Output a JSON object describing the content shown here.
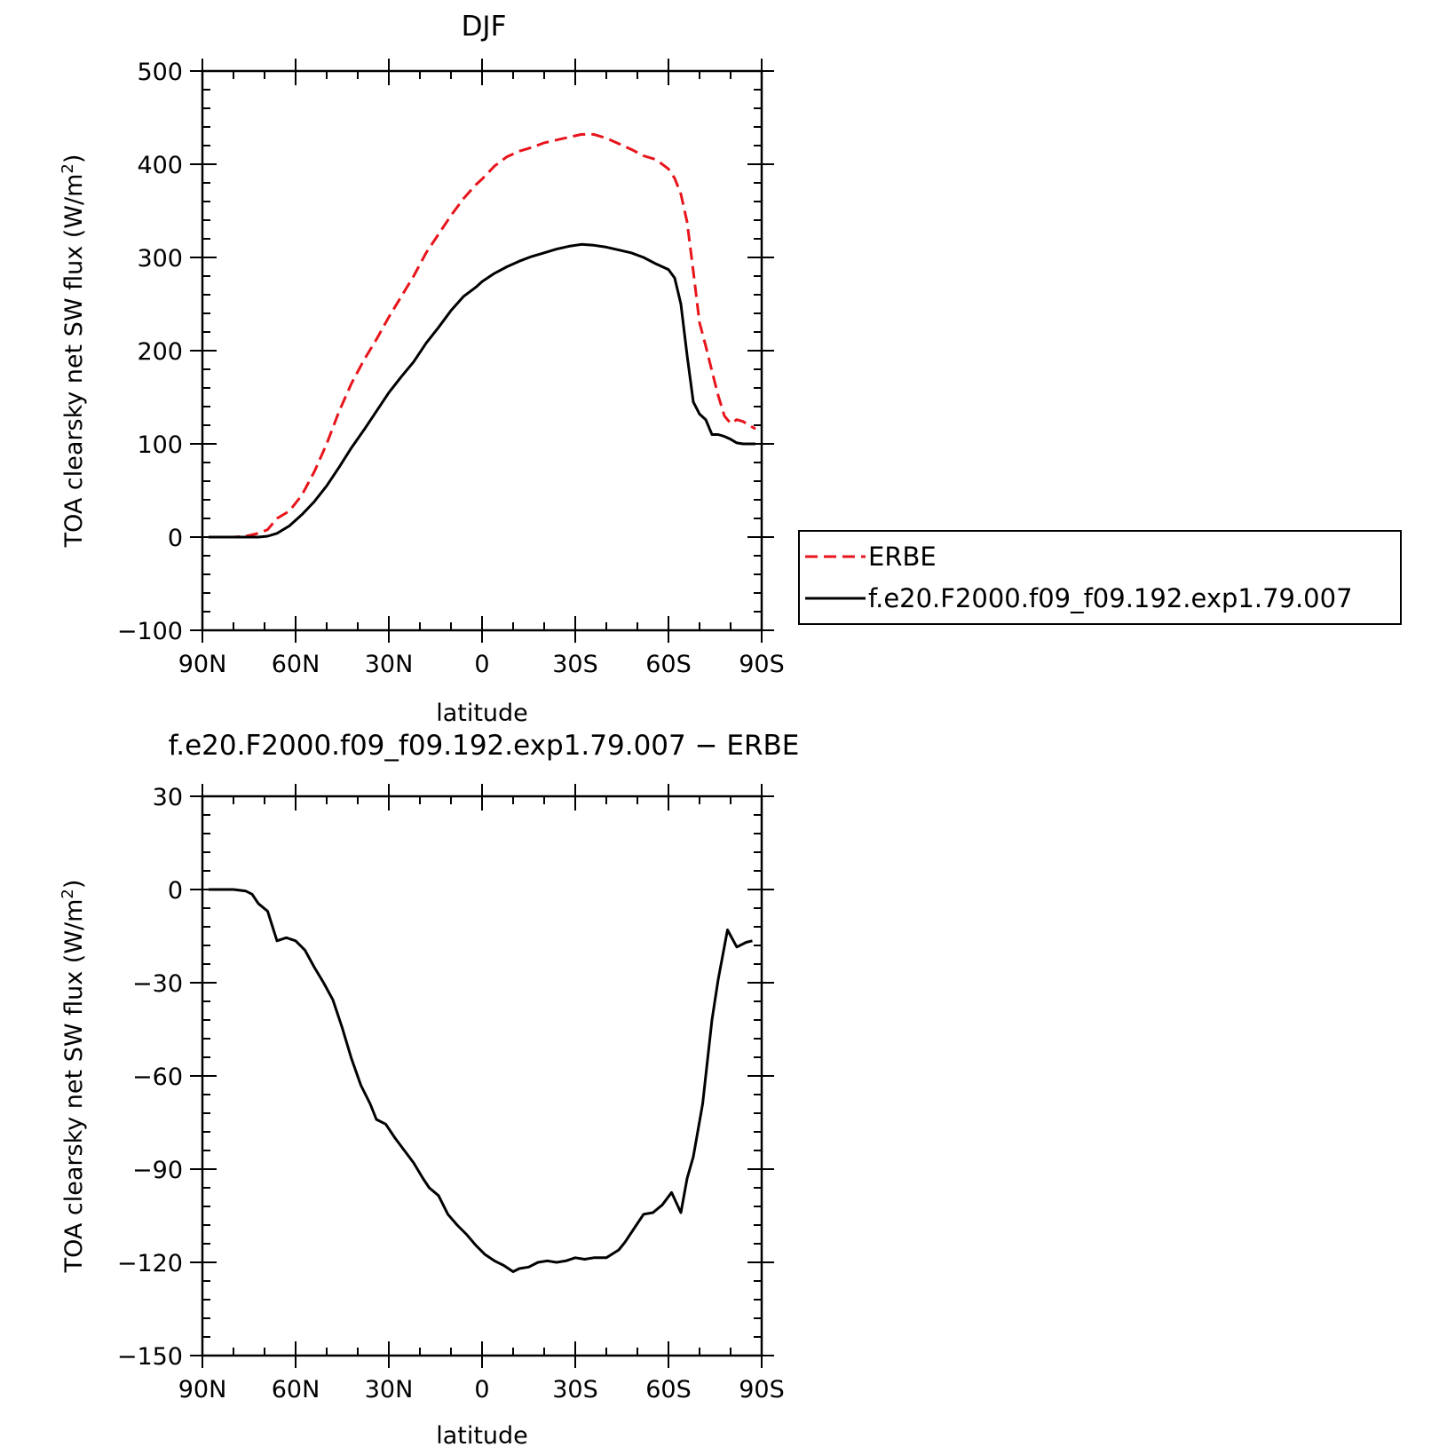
{
  "chart_data": [
    {
      "type": "line",
      "title": "DJF",
      "xlabel": "latitude",
      "ylabel": "TOA clearsky net SW flux (W/m",
      "ylabel_superscript": "2",
      "ylabel_suffix": ")",
      "xlim": [
        90,
        -90
      ],
      "ylim": [
        -100,
        500
      ],
      "x_ticks": [
        90,
        60,
        30,
        0,
        -30,
        -60,
        -90
      ],
      "x_tick_labels": [
        "90N",
        "60N",
        "30N",
        "0",
        "30S",
        "60S",
        "90S"
      ],
      "y_ticks": [
        -100,
        0,
        100,
        200,
        300,
        400,
        500
      ],
      "y_tick_labels": [
        "−100",
        "0",
        "100",
        "200",
        "300",
        "400",
        "500"
      ],
      "legend_position": "right",
      "series": [
        {
          "name": "ERBE",
          "color": "#e8141b",
          "dash": "dashed",
          "x": [
            88,
            84,
            80,
            76,
            72,
            69,
            66,
            62,
            58,
            54,
            50,
            46,
            42,
            38,
            34,
            30,
            26,
            22,
            18,
            14,
            10,
            6,
            2,
            0,
            -4,
            -8,
            -12,
            -16,
            -20,
            -24,
            -28,
            -32,
            -36,
            -40,
            -44,
            -48,
            -52,
            -56,
            -60,
            -62,
            -64,
            -66,
            -68,
            -70,
            -72,
            -74,
            -76,
            -78,
            -80,
            -82,
            -84,
            -86,
            -88
          ],
          "y": [
            0,
            0,
            0,
            1,
            4,
            8,
            20,
            28,
            45,
            70,
            100,
            135,
            165,
            190,
            212,
            236,
            258,
            280,
            305,
            325,
            345,
            363,
            378,
            384,
            398,
            408,
            414,
            418,
            423,
            426,
            429,
            432,
            432,
            428,
            422,
            416,
            409,
            405,
            395,
            385,
            368,
            338,
            285,
            230,
            205,
            178,
            152,
            130,
            122,
            126,
            124,
            120,
            116
          ]
        },
        {
          "name": "f.e20.F2000.f09_f09.192.exp1.79.007",
          "color": "#000000",
          "dash": "solid",
          "x": [
            88,
            84,
            80,
            76,
            72,
            69,
            66,
            62,
            58,
            54,
            50,
            46,
            42,
            38,
            34,
            30,
            26,
            22,
            18,
            14,
            10,
            6,
            2,
            0,
            -4,
            -8,
            -12,
            -16,
            -20,
            -24,
            -28,
            -32,
            -36,
            -40,
            -44,
            -48,
            -52,
            -56,
            -60,
            -62,
            -64,
            -66,
            -68,
            -70,
            -72,
            -74,
            -76,
            -78,
            -80,
            -82,
            -84,
            -86,
            -88
          ],
          "y": [
            0,
            0,
            0,
            0,
            0,
            1,
            4,
            12,
            24,
            38,
            55,
            75,
            96,
            115,
            135,
            155,
            172,
            188,
            208,
            225,
            243,
            258,
            268,
            274,
            283,
            290,
            296,
            301,
            305,
            309,
            312,
            314,
            313,
            311,
            308,
            305,
            300,
            293,
            287,
            278,
            250,
            195,
            145,
            132,
            126,
            110,
            110,
            108,
            105,
            101,
            100,
            100,
            100
          ]
        }
      ]
    },
    {
      "type": "line",
      "title": "f.e20.F2000.f09_f09.192.exp1.79.007 − ERBE",
      "xlabel": "latitude",
      "ylabel": "TOA clearsky net SW flux (W/m",
      "ylabel_superscript": "2",
      "ylabel_suffix": ")",
      "xlim": [
        90,
        -90
      ],
      "ylim": [
        -150,
        30
      ],
      "x_ticks": [
        90,
        60,
        30,
        0,
        -30,
        -60,
        -90
      ],
      "x_tick_labels": [
        "90N",
        "60N",
        "30N",
        "0",
        "30S",
        "60S",
        "90S"
      ],
      "y_ticks": [
        -150,
        -120,
        -90,
        -60,
        -30,
        0,
        30
      ],
      "y_tick_labels": [
        "−150",
        "−120",
        "−90",
        "−60",
        "−30",
        "0",
        "30"
      ],
      "series": [
        {
          "color": "#000000",
          "dash": "solid",
          "x": [
            88,
            84,
            80,
            76,
            74,
            72,
            69,
            66,
            63,
            60,
            57,
            54,
            51,
            48,
            45,
            42,
            39,
            36,
            34,
            31,
            28,
            25,
            22,
            19,
            17,
            14,
            11,
            8,
            5,
            2,
            -1,
            -4,
            -7,
            -10,
            -12,
            -15,
            -18,
            -21,
            -24,
            -27,
            -30,
            -33,
            -36,
            -40,
            -44,
            -46,
            -49,
            -52,
            -55,
            -58,
            -61,
            -64,
            -66,
            -68,
            -71,
            -74,
            -76,
            -79,
            -82,
            -85,
            -87
          ],
          "y": [
            0,
            0,
            0,
            -0.5,
            -1.5,
            -4.5,
            -7,
            -16.5,
            -15.5,
            -16.5,
            -19.5,
            -25,
            -30,
            -35.5,
            -44.5,
            -54.5,
            -63,
            -69,
            -74,
            -75.5,
            -80,
            -84,
            -88,
            -93,
            -96,
            -98.5,
            -104.5,
            -108,
            -111,
            -114.5,
            -117.5,
            -119.5,
            -121,
            -123,
            -122,
            -121.5,
            -120,
            -119.5,
            -120,
            -119.5,
            -118.5,
            -119,
            -118.5,
            -118.5,
            -116,
            -113.5,
            -109,
            -104.5,
            -104,
            -101.5,
            -97.5,
            -104,
            -93,
            -86,
            -69,
            -42,
            -29,
            -13,
            -18.5,
            -17,
            -16.5
          ]
        }
      ]
    }
  ]
}
